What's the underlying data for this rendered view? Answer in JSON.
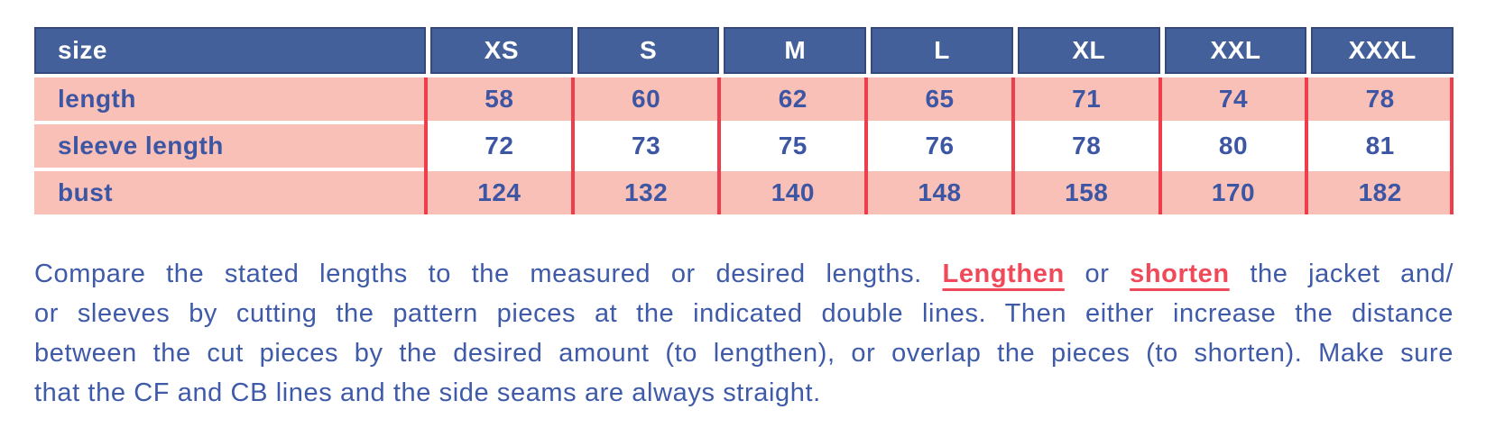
{
  "colors": {
    "header_bg": "#44609b",
    "header_rim": "#35497c",
    "header_text": "#ffffff",
    "pink_cell": "#f9c0b8",
    "white_cell": "#ffffff",
    "red_line": "#ee3e4b",
    "table_text": "#3d56a3",
    "paragraph_text": "#3e5aa8",
    "red_word": "#f0495a"
  },
  "table": {
    "header": [
      "size",
      "XS",
      "S",
      "M",
      "L",
      "XL",
      "XXL",
      "XXXL"
    ],
    "rows": [
      {
        "label": "length",
        "values": [
          "58",
          "60",
          "62",
          "65",
          "71",
          "74",
          "78"
        ],
        "data_background": "pink"
      },
      {
        "label": "sleeve length",
        "values": [
          "72",
          "73",
          "75",
          "76",
          "78",
          "80",
          "81"
        ],
        "data_background": "white"
      },
      {
        "label": "bust",
        "values": [
          "124",
          "132",
          "140",
          "148",
          "158",
          "170",
          "182"
        ],
        "data_background": "pink"
      }
    ]
  },
  "instructions": {
    "lines": [
      {
        "justify": true,
        "segments": [
          {
            "text": "Compare the stated lengths to the measured or desired lengths. "
          },
          {
            "text": "Lengthen",
            "emphasis": "red"
          },
          {
            "text": " or "
          },
          {
            "text": "shorten",
            "emphasis": "red"
          },
          {
            "text": " the jacket and/"
          }
        ]
      },
      {
        "justify": true,
        "segments": [
          {
            "text": "or sleeves by cutting the pattern pieces at the indicated double lines. Then either increase the distance"
          }
        ]
      },
      {
        "justify": true,
        "segments": [
          {
            "text": "between the cut pieces by the desired amount (to lengthen), or overlap the pieces (to shorten). Make sure"
          }
        ]
      },
      {
        "justify": false,
        "segments": [
          {
            "text": "that the CF and CB lines and the side seams are always straight."
          }
        ]
      }
    ]
  }
}
